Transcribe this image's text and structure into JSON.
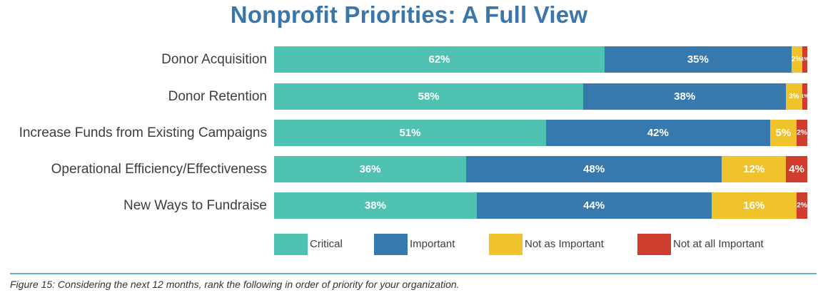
{
  "title": "Nonprofit Priorities: A Full View",
  "caption": "Figure 15: Considering the next 12 months, rank the following in order of priority for your organization.",
  "colors": {
    "Critical": "#4fc2b1",
    "Important": "#3778ad",
    "Not as Important": "#f0c22b",
    "Not at all Important": "#cf3d2e"
  },
  "chart_data": {
    "type": "bar",
    "orientation": "horizontal",
    "stacked": true,
    "percent": true,
    "title": "Nonprofit Priorities: A Full View",
    "categories": [
      "Donor Acquisition",
      "Donor Retention",
      "Increase Funds from Existing Campaigns",
      "Operational Efficiency/Effectiveness",
      "New Ways to Fundraise"
    ],
    "series": [
      {
        "name": "Critical",
        "values": [
          62,
          58,
          51,
          36,
          38
        ]
      },
      {
        "name": "Important",
        "values": [
          35,
          38,
          42,
          48,
          44
        ]
      },
      {
        "name": "Not as Important",
        "values": [
          2,
          3,
          5,
          12,
          16
        ]
      },
      {
        "name": "Not at all Important",
        "values": [
          1,
          1,
          2,
          4,
          2
        ]
      }
    ],
    "legend": "bottom"
  }
}
